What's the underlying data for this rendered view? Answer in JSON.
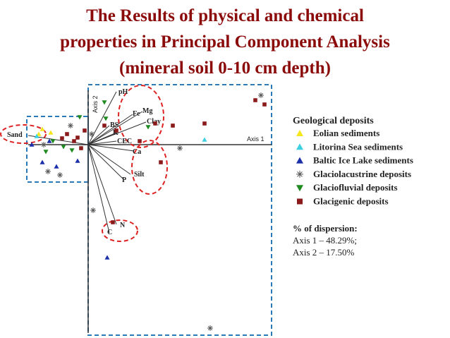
{
  "title": {
    "lines": [
      "The Results of physical and chemical",
      "properties in Principal Component Analysis",
      "(mineral soil 0-10 cm depth)"
    ]
  },
  "plot": {
    "axis_1": "Axis 1",
    "axis_2": "Axis 2",
    "variables": [
      "pH",
      "Fe",
      "Mg",
      "Clay",
      "BS",
      "K",
      "CEC",
      "Ca",
      "Silt",
      "P",
      "N",
      "C",
      "Sand"
    ]
  },
  "legend": {
    "title": "Geological deposits",
    "entries": [
      "Eolian sediments",
      "Litorina Sea sediments",
      "Baltic Ice Lake sediments",
      "Glaciolacustrine deposits",
      "Glaciofluvial deposits",
      "Glacigenic deposits"
    ]
  },
  "dispersion": {
    "title": "% of dispersion:",
    "lines": [
      "Axis 1 – 48.29%;",
      "Axis 2 – 17.50%"
    ]
  }
}
